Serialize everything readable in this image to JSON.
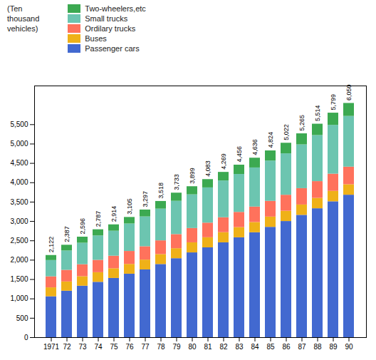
{
  "chart_data": {
    "type": "bar",
    "stacked": true,
    "ylabel": "(Ten\nthousand\nvehicles)",
    "categories": [
      "1971",
      "72",
      "73",
      "74",
      "75",
      "76",
      "77",
      "78",
      "79",
      "80",
      "81",
      "82",
      "83",
      "84",
      "85",
      "86",
      "87",
      "88",
      "89",
      "90"
    ],
    "series": [
      {
        "name": "Passenger cars",
        "values": [
          1057,
          1200,
          1330,
          1430,
          1530,
          1640,
          1750,
          1890,
          2040,
          2190,
          2320,
          2450,
          2580,
          2710,
          2850,
          3000,
          3160,
          3330,
          3510,
          3680
        ]
      },
      {
        "name": "Buses",
        "values": [
          230,
          240,
          245,
          248,
          250,
          252,
          254,
          256,
          258,
          260,
          261,
          262,
          263,
          264,
          265,
          266,
          267,
          268,
          269,
          270
        ]
      },
      {
        "name": "Ordilary trucks",
        "values": [
          285,
          300,
          310,
          320,
          325,
          335,
          345,
          355,
          365,
          370,
          378,
          386,
          393,
          400,
          407,
          413,
          423,
          433,
          445,
          455
        ]
      },
      {
        "name": "Small trucks",
        "values": [
          420,
          500,
          555,
          630,
          645,
          710,
          770,
          820,
          860,
          870,
          910,
          950,
          980,
          1010,
          1040,
          1070,
          1130,
          1190,
          1260,
          1310
        ]
      },
      {
        "name": "Two-wheelers,etc",
        "values": [
          130,
          147,
          156,
          159,
          164,
          168,
          178,
          197,
          210,
          209,
          214,
          221,
          240,
          252,
          262,
          273,
          285,
          293,
          315,
          335
        ]
      }
    ],
    "totals": {
      "values": [
        2122,
        2387,
        2596,
        2787,
        2914,
        3105,
        3297,
        3518,
        3733,
        3899,
        4083,
        4269,
        4456,
        4636,
        4824,
        5022,
        5265,
        5514,
        5799,
        6050
      ],
      "value_labels": [
        "2,122",
        "2,387",
        "2,596",
        "2,787",
        "2,914",
        "3,105",
        "3,297",
        "3,518",
        "3,733",
        "3,899",
        "4,083",
        "4,269",
        "4,456",
        "4,636",
        "4,824",
        "5,022",
        "5,265",
        "5,514",
        "5,799",
        "6,050"
      ]
    },
    "ylim": [
      0,
      6500
    ],
    "yticks": [
      0,
      500,
      {
        "value": 1000,
        "label": "1,000"
      },
      {
        "value": 1500,
        "label": "1,500"
      },
      {
        "value": 2000,
        "label": "2,000"
      },
      {
        "value": 2500,
        "label": "2,500"
      },
      {
        "value": 3000,
        "label": "3,000"
      },
      {
        "value": 3500,
        "label": "3,500"
      },
      {
        "value": 4000,
        "label": "4,000"
      },
      {
        "value": 4500,
        "label": "4,500"
      },
      {
        "value": 5000,
        "label": "5,000"
      },
      {
        "value": 5500,
        "label": "5,500"
      }
    ],
    "grid": false,
    "legend": "upper left"
  }
}
